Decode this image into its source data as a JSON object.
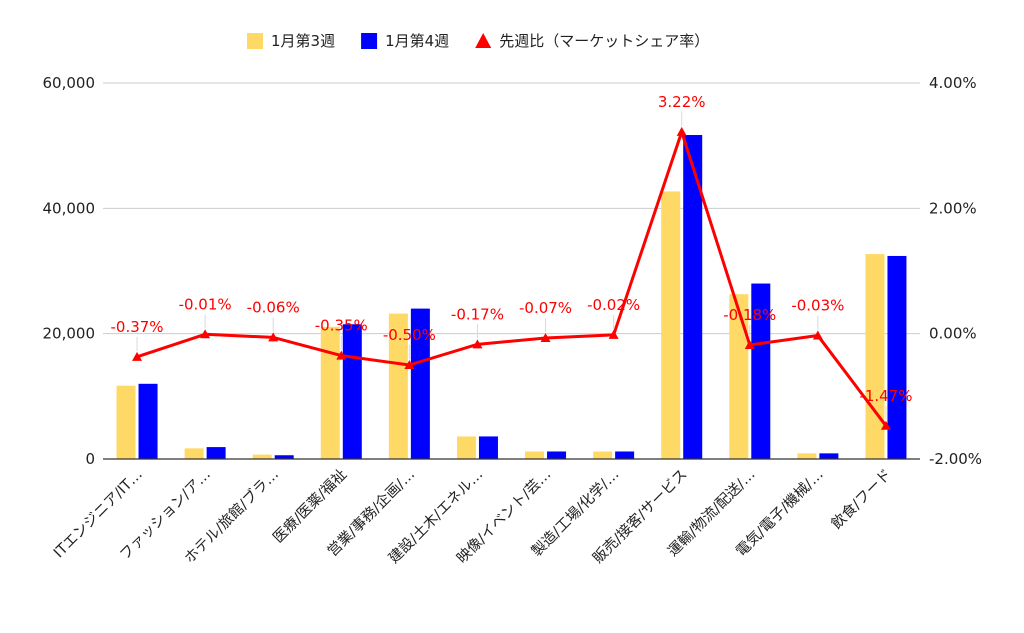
{
  "chart_data": {
    "type": "bar",
    "legend": {
      "position": "top"
    },
    "grid": true,
    "categories": [
      "ITエンジニア/IT…",
      "ファッション/ア…",
      "ホテル/旅館/ブラ…",
      "医療/医薬/福祉",
      "営業/事務/企画/…",
      "建設/土木/エネル…",
      "映像/イベント/芸…",
      "製造/工場/化学/…",
      "販売/接客/サービス",
      "運輸/物流/配送/…",
      "電気/電子/機械/…",
      "飲食/フード"
    ],
    "series": [
      {
        "name": "1月第3週",
        "kind": "bar",
        "axis": "left",
        "color": "#ffd966",
        "values": [
          11700,
          1700,
          700,
          21100,
          23200,
          3600,
          1200,
          1200,
          42700,
          26300,
          900,
          32700
        ]
      },
      {
        "name": "1月第4週",
        "kind": "bar",
        "axis": "left",
        "color": "#0000ff",
        "values": [
          12000,
          1900,
          600,
          21500,
          24000,
          3600,
          1200,
          1200,
          51700,
          28000,
          900,
          32400
        ]
      },
      {
        "name": "先週比（マーケットシェア率）",
        "kind": "line",
        "axis": "right",
        "color": "#ff0000",
        "marker": "triangle",
        "values": [
          -0.37,
          -0.01,
          -0.06,
          -0.35,
          -0.5,
          -0.17,
          -0.07,
          -0.02,
          3.22,
          -0.18,
          -0.03,
          -1.47
        ],
        "labels": [
          "-0.37%",
          "-0.01%",
          "-0.06%",
          "-0.35%",
          "-0.50%",
          "-0.17%",
          "-0.07%",
          "-0.02%",
          "3.22%",
          "-0.18%",
          "-0.03%",
          "-1.47%"
        ]
      }
    ],
    "ylim_left": [
      0,
      60000
    ],
    "yticks_left": [
      0,
      20000,
      40000,
      60000
    ],
    "ytick_labels_left": [
      "0",
      "20,000",
      "40,000",
      "60,000"
    ],
    "ylim_right": [
      -2,
      4
    ],
    "yticks_right": [
      -2,
      0,
      2,
      4
    ],
    "ytick_labels_right": [
      "-2.00%",
      "0.00%",
      "2.00%",
      "4.00%"
    ]
  }
}
